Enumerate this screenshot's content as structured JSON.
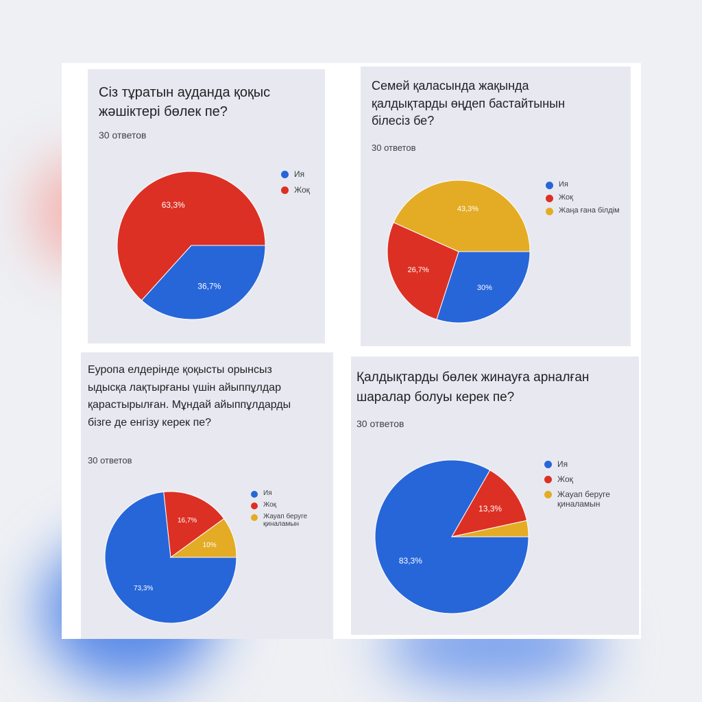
{
  "colors": {
    "blue": "#2766d9",
    "red": "#dc3024",
    "yellow": "#e3ac24"
  },
  "chart_data": [
    {
      "type": "pie",
      "title": "Сіз тұратын ауданда қоқыс жәшіктері бөлек пе?",
      "subtitle": "30 ответов",
      "categories": [
        "Ия",
        "Жоқ"
      ],
      "values": [
        36.7,
        63.3
      ],
      "labels": [
        "36,7%",
        "63,3%"
      ],
      "colors": [
        "#2766d9",
        "#dc3024"
      ],
      "legend": "right"
    },
    {
      "type": "pie",
      "title": "Семей қаласында жақында қалдықтарды өңдеп бастайтынын білесіз бе?",
      "subtitle": "30 ответов",
      "categories": [
        "Ия",
        "Жоқ",
        "Жаңа ғана білдім"
      ],
      "values": [
        30,
        26.7,
        43.3
      ],
      "labels": [
        "30%",
        "26,7%",
        "43,3%"
      ],
      "colors": [
        "#2766d9",
        "#dc3024",
        "#e3ac24"
      ],
      "legend": "right"
    },
    {
      "type": "pie",
      "title": "Еуропа елдерінде қоқысты орынсыз ыдысқа лақтырғаны үшін айыппұлдар қарастырылған. Мұндай айыппұлдарды бізге де енгізу керек пе?",
      "subtitle": "30 ответов",
      "categories": [
        "Ия",
        "Жоқ",
        "Жауап беруге қиналамын"
      ],
      "values": [
        73.3,
        16.7,
        10
      ],
      "labels": [
        "73,3%",
        "16,7%",
        "10%"
      ],
      "colors": [
        "#2766d9",
        "#dc3024",
        "#e3ac24"
      ],
      "legend": "right"
    },
    {
      "type": "pie",
      "title": "Қалдықтарды бөлек жинауға арналған шаралар болуы керек пе?",
      "subtitle": "30 ответов",
      "categories": [
        "Ия",
        "Жоқ",
        "Жауап беруге қиналамын"
      ],
      "values": [
        83.3,
        13.3,
        3.4
      ],
      "labels": [
        "83,3%",
        "13,3%",
        ""
      ],
      "colors": [
        "#2766d9",
        "#dc3024",
        "#e3ac24"
      ],
      "legend": "right"
    }
  ]
}
